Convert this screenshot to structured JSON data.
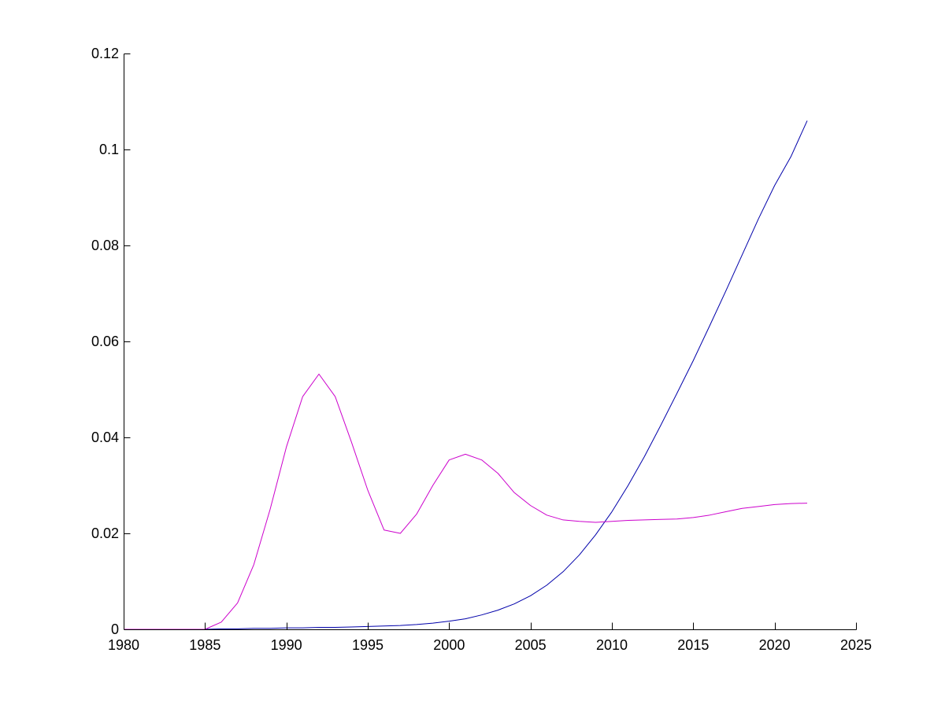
{
  "chart_data": {
    "type": "line",
    "title": "",
    "xlabel": "",
    "ylabel": "",
    "xlim": [
      1980,
      2025
    ],
    "ylim": [
      0,
      0.12
    ],
    "xticks": [
      1980,
      1985,
      1990,
      1995,
      2000,
      2005,
      2010,
      2015,
      2020,
      2025
    ],
    "yticks": [
      0,
      0.02,
      0.04,
      0.06,
      0.08,
      0.1,
      0.12
    ],
    "xtick_labels": [
      "1980",
      "1985",
      "1990",
      "1995",
      "2000",
      "2005",
      "2010",
      "2015",
      "2020",
      "2025"
    ],
    "ytick_labels": [
      "0",
      "0.02",
      "0.04",
      "0.06",
      "0.08",
      "0.1",
      "0.12"
    ],
    "grid": false,
    "legend": "none",
    "x": [
      1980,
      1981,
      1982,
      1983,
      1984,
      1985,
      1986,
      1987,
      1988,
      1989,
      1990,
      1991,
      1992,
      1993,
      1994,
      1995,
      1996,
      1997,
      1998,
      1999,
      2000,
      2001,
      2002,
      2003,
      2004,
      2005,
      2006,
      2007,
      2008,
      2009,
      2010,
      2011,
      2012,
      2013,
      2014,
      2015,
      2016,
      2017,
      2018,
      2019,
      2020,
      2021,
      2022
    ],
    "series": [
      {
        "color": "#0000aa",
        "values": [
          0,
          0,
          0,
          0,
          0,
          0,
          0.0001,
          0.0001,
          0.0002,
          0.0002,
          0.0003,
          0.0003,
          0.0004,
          0.0004,
          0.0005,
          0.0006,
          0.0007,
          0.0008,
          0.001,
          0.0013,
          0.0017,
          0.0022,
          0.003,
          0.004,
          0.0053,
          0.007,
          0.0092,
          0.012,
          0.0155,
          0.0197,
          0.0245,
          0.03,
          0.036,
          0.0425,
          0.0492,
          0.056,
          0.0632,
          0.0705,
          0.078,
          0.0855,
          0.0925,
          0.0985,
          0.106
        ]
      },
      {
        "color": "#cc00cc",
        "values": [
          0,
          0,
          0,
          0,
          0,
          0,
          0.0015,
          0.0055,
          0.0135,
          0.025,
          0.038,
          0.0485,
          0.0532,
          0.0485,
          0.039,
          0.029,
          0.0207,
          0.02,
          0.024,
          0.03,
          0.0353,
          0.0365,
          0.0353,
          0.0325,
          0.0285,
          0.0258,
          0.0238,
          0.0228,
          0.0225,
          0.0223,
          0.0225,
          0.0227,
          0.0228,
          0.0229,
          0.023,
          0.0233,
          0.0238,
          0.0245,
          0.0252,
          0.0256,
          0.026,
          0.0262,
          0.0263
        ]
      }
    ]
  }
}
